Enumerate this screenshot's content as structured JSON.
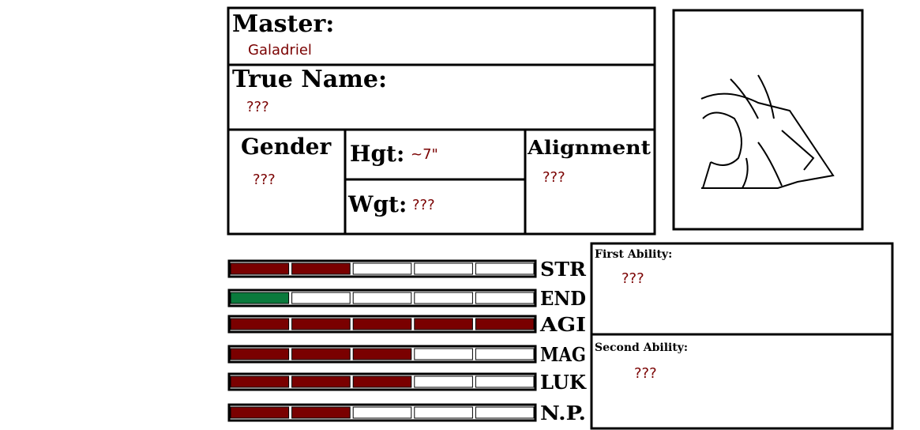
{
  "sheet": {
    "master": {
      "label": "Master:",
      "value": "Galadriel"
    },
    "true_name": {
      "label": "True Name:",
      "value": "???"
    },
    "gender": {
      "label": "Gender",
      "value": "???"
    },
    "height": {
      "label": "Hgt:",
      "value": "~7\""
    },
    "weight": {
      "label": "Wgt:",
      "value": "???"
    },
    "alignment": {
      "label": "Alignment",
      "value": "???"
    },
    "stats": [
      {
        "label": "STR",
        "filled": 2,
        "segments": 5,
        "color": "#7a0000"
      },
      {
        "label": "END",
        "filled": 1,
        "segments": 5,
        "color": "#0a7a3c"
      },
      {
        "label": "AGI",
        "filled": 5,
        "segments": 5,
        "color": "#7a0000"
      },
      {
        "label": "MAG",
        "filled": 3,
        "segments": 5,
        "color": "#7a0000"
      },
      {
        "label": "LUK",
        "filled": 3,
        "segments": 5,
        "color": "#7a0000"
      },
      {
        "label": "N.P.",
        "filled": 2,
        "segments": 5,
        "color": "#7a0000"
      }
    ],
    "abilities": [
      {
        "label": "First Ability:",
        "value": "???"
      },
      {
        "label": "Second Ability:",
        "value": "???"
      }
    ]
  }
}
